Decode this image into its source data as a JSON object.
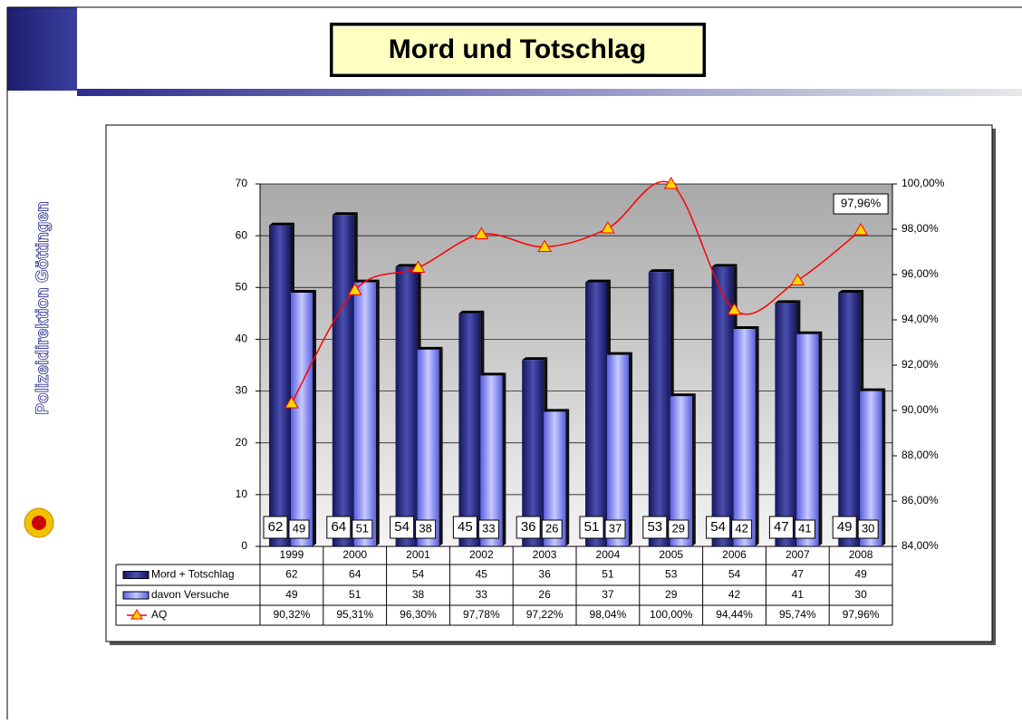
{
  "side_text": "Polizeidirektion Göttingen",
  "chart_data": {
    "type": "bar",
    "title": "Mord und Totschlag",
    "categories": [
      "1999",
      "2000",
      "2001",
      "2002",
      "2003",
      "2004",
      "2005",
      "2006",
      "2007",
      "2008"
    ],
    "series": [
      {
        "name": "Mord + Totschlag",
        "color": "#2b2e8c",
        "values": [
          62,
          64,
          54,
          45,
          36,
          51,
          53,
          54,
          47,
          49
        ]
      },
      {
        "name": "davon Versuche",
        "color": "#7f86f5",
        "values": [
          49,
          51,
          38,
          33,
          26,
          37,
          29,
          42,
          41,
          30
        ]
      },
      {
        "name": "AQ",
        "type": "line",
        "axis": "y2",
        "color": "#ff0000",
        "marker_color": "#ffd700",
        "values": [
          90.32,
          95.31,
          96.3,
          97.78,
          97.22,
          98.04,
          100.0,
          94.44,
          95.74,
          97.96
        ],
        "value_labels": [
          "90,32%",
          "95,31%",
          "96,30%",
          "97,78%",
          "97,22%",
          "98,04%",
          "100,00%",
          "94,44%",
          "95,74%",
          "97,96%"
        ]
      }
    ],
    "ylim": [
      0,
      70
    ],
    "yticks": [
      0,
      10,
      20,
      30,
      40,
      50,
      60,
      70
    ],
    "y2lim": [
      84,
      100
    ],
    "y2ticks": [
      {
        "value": 84,
        "label": "84,00%"
      },
      {
        "value": 86,
        "label": "86,00%"
      },
      {
        "value": 88,
        "label": "88,00%"
      },
      {
        "value": 90,
        "label": "90,00%"
      },
      {
        "value": 92,
        "label": "92,00%"
      },
      {
        "value": 94,
        "label": "94,00%"
      },
      {
        "value": 96,
        "label": "96,00%"
      },
      {
        "value": 98,
        "label": "98,00%"
      },
      {
        "value": 100,
        "label": "100,00%"
      }
    ],
    "grid": true
  }
}
